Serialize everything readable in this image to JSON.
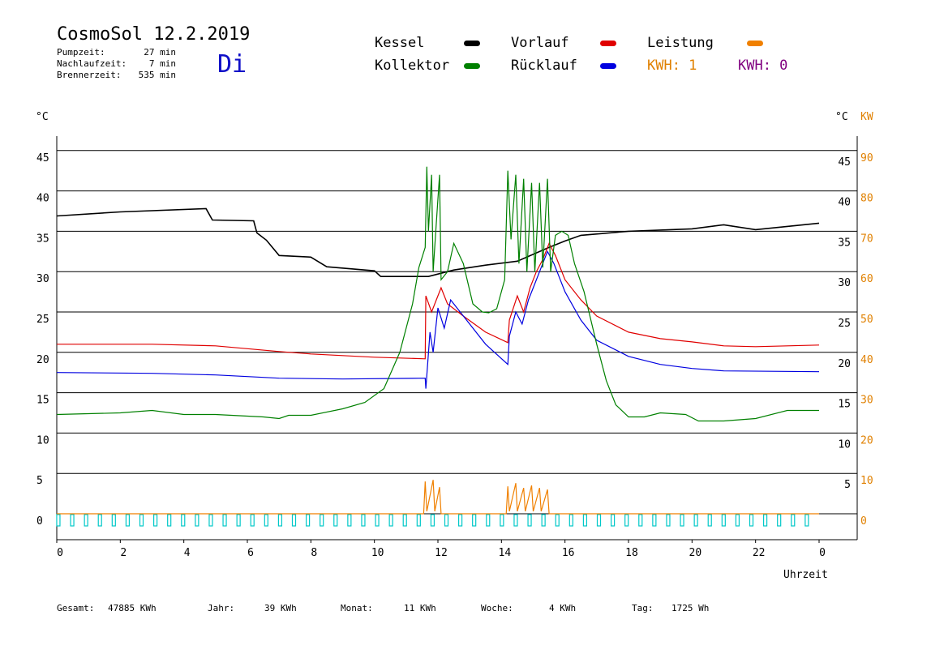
{
  "header": {
    "title": "CosmoSol 12.2.2019",
    "day": "Di",
    "info": [
      {
        "label": "Pumpzeit:",
        "value": "27 min"
      },
      {
        "label": "Nachlaufzeit:",
        "value": "7 min"
      },
      {
        "label": "Brennerzeit:",
        "value": "535 min"
      }
    ]
  },
  "legend": {
    "kessel": {
      "label": "Kessel",
      "color": "#000000"
    },
    "kollektor": {
      "label": "Kollektor",
      "color": "#008000"
    },
    "vorlauf": {
      "label": "Vorlauf",
      "color": "#e00000"
    },
    "ruecklauf": {
      "label": "Rücklauf",
      "color": "#0000e0"
    },
    "leistung": {
      "label": "Leistung",
      "color": "#f08000"
    },
    "kwh1": {
      "label": "KWH: 1",
      "color": "#e08000"
    },
    "kwh2": {
      "label": "KWH: 0",
      "color": "#800080"
    }
  },
  "axes": {
    "left_unit": "°C",
    "right_unit": "°C",
    "right_unit2": "KW",
    "xlabel": "Uhrzeit"
  },
  "footer": [
    {
      "label": "Gesamt:",
      "value": "47885 KWh"
    },
    {
      "label": "Jahr:",
      "value": "39 KWh"
    },
    {
      "label": "Monat:",
      "value": "11 KWh"
    },
    {
      "label": "Woche:",
      "value": "4 KWh"
    },
    {
      "label": "Tag:",
      "value": "1725 Wh"
    }
  ],
  "chart_data": {
    "type": "line",
    "title": "CosmoSol 12.2.2019",
    "xlabel": "Uhrzeit",
    "ylabel": "°C",
    "xlim": [
      0,
      24
    ],
    "ylim": [
      -2,
      48
    ],
    "x_ticks": [
      "0",
      "2",
      "4",
      "6",
      "8",
      "10",
      "12",
      "14",
      "16",
      "18",
      "20",
      "22",
      "0"
    ],
    "y_ticks_left": [
      0,
      5,
      10,
      15,
      20,
      25,
      30,
      35,
      40,
      45
    ],
    "y_ticks_right": [
      5,
      10,
      15,
      20,
      25,
      30,
      35,
      40,
      45
    ],
    "y2_ticks": [
      0,
      10,
      20,
      30,
      40,
      50,
      60,
      70,
      80,
      90
    ],
    "grid": true,
    "series": [
      {
        "name": "Kessel",
        "color": "#000000",
        "points": [
          [
            0,
            36.9
          ],
          [
            2,
            37.4
          ],
          [
            4.7,
            37.8
          ],
          [
            4.9,
            36.4
          ],
          [
            6.2,
            36.3
          ],
          [
            6.3,
            34.8
          ],
          [
            6.6,
            33.9
          ],
          [
            7.0,
            32.0
          ],
          [
            8.0,
            31.8
          ],
          [
            8.5,
            30.6
          ],
          [
            10.0,
            30.1
          ],
          [
            10.2,
            29.4
          ],
          [
            11.7,
            29.4
          ],
          [
            12.5,
            30.2
          ],
          [
            13.5,
            30.8
          ],
          [
            14.5,
            31.3
          ],
          [
            15.5,
            33.0
          ],
          [
            16.0,
            33.8
          ],
          [
            16.5,
            34.5
          ],
          [
            18.0,
            35.0
          ],
          [
            20.0,
            35.3
          ],
          [
            21.0,
            35.8
          ],
          [
            22.0,
            35.2
          ],
          [
            23.0,
            35.6
          ],
          [
            24.0,
            36.0
          ]
        ]
      },
      {
        "name": "Vorlauf",
        "color": "#e00000",
        "points": [
          [
            0,
            21.0
          ],
          [
            3,
            21.0
          ],
          [
            5,
            20.8
          ],
          [
            7,
            20.1
          ],
          [
            8,
            19.8
          ],
          [
            10,
            19.4
          ],
          [
            11.6,
            19.2
          ],
          [
            11.62,
            27.0
          ],
          [
            11.8,
            25.0
          ],
          [
            11.95,
            26.5
          ],
          [
            12.1,
            28.0
          ],
          [
            12.3,
            26.0
          ],
          [
            12.8,
            24.5
          ],
          [
            13.5,
            22.5
          ],
          [
            14.2,
            21.2
          ],
          [
            14.25,
            24.0
          ],
          [
            14.5,
            27.0
          ],
          [
            14.7,
            25.0
          ],
          [
            14.9,
            28.0
          ],
          [
            15.1,
            30.0
          ],
          [
            15.3,
            31.5
          ],
          [
            15.5,
            33.5
          ],
          [
            15.7,
            32.0
          ],
          [
            16.0,
            29.0
          ],
          [
            16.5,
            26.5
          ],
          [
            17.0,
            24.5
          ],
          [
            18.0,
            22.5
          ],
          [
            19.0,
            21.7
          ],
          [
            20.0,
            21.3
          ],
          [
            21.0,
            20.8
          ],
          [
            22.0,
            20.7
          ],
          [
            23.0,
            20.8
          ],
          [
            24.0,
            20.9
          ]
        ]
      },
      {
        "name": "Rücklauf",
        "color": "#0000e0",
        "points": [
          [
            0,
            17.5
          ],
          [
            3,
            17.4
          ],
          [
            5,
            17.2
          ],
          [
            7,
            16.8
          ],
          [
            9,
            16.7
          ],
          [
            11.6,
            16.8
          ],
          [
            11.62,
            15.5
          ],
          [
            11.75,
            22.5
          ],
          [
            11.85,
            20.0
          ],
          [
            12.0,
            25.5
          ],
          [
            12.2,
            23.0
          ],
          [
            12.4,
            26.5
          ],
          [
            12.9,
            24.0
          ],
          [
            13.5,
            21.0
          ],
          [
            14.2,
            18.5
          ],
          [
            14.25,
            22.0
          ],
          [
            14.45,
            25.0
          ],
          [
            14.65,
            23.5
          ],
          [
            14.85,
            26.5
          ],
          [
            15.05,
            28.5
          ],
          [
            15.25,
            30.5
          ],
          [
            15.45,
            32.5
          ],
          [
            15.65,
            31.0
          ],
          [
            16.0,
            27.5
          ],
          [
            16.5,
            24.0
          ],
          [
            17.0,
            21.5
          ],
          [
            18.0,
            19.5
          ],
          [
            19.0,
            18.5
          ],
          [
            20.0,
            18.0
          ],
          [
            21.0,
            17.7
          ],
          [
            24.0,
            17.6
          ]
        ]
      },
      {
        "name": "Kollektor",
        "color": "#008000",
        "points": [
          [
            0,
            12.3
          ],
          [
            2,
            12.5
          ],
          [
            3,
            12.8
          ],
          [
            4,
            12.3
          ],
          [
            5,
            12.3
          ],
          [
            6.5,
            12.0
          ],
          [
            7.0,
            11.8
          ],
          [
            7.3,
            12.2
          ],
          [
            8,
            12.2
          ],
          [
            9,
            13.0
          ],
          [
            9.7,
            13.8
          ],
          [
            10.3,
            15.5
          ],
          [
            10.8,
            20.0
          ],
          [
            11.2,
            26.0
          ],
          [
            11.4,
            30.5
          ],
          [
            11.6,
            33.0
          ],
          [
            11.65,
            43.0
          ],
          [
            11.7,
            35.0
          ],
          [
            11.8,
            42.0
          ],
          [
            11.85,
            30.0
          ],
          [
            11.95,
            36.0
          ],
          [
            12.05,
            42.0
          ],
          [
            12.1,
            29.0
          ],
          [
            12.3,
            30.0
          ],
          [
            12.5,
            33.5
          ],
          [
            12.8,
            31.0
          ],
          [
            13.1,
            26.0
          ],
          [
            13.4,
            25.0
          ],
          [
            13.6,
            24.9
          ],
          [
            13.85,
            25.4
          ],
          [
            14.1,
            29.0
          ],
          [
            14.2,
            42.5
          ],
          [
            14.3,
            34.0
          ],
          [
            14.45,
            42.0
          ],
          [
            14.55,
            31.0
          ],
          [
            14.7,
            41.5
          ],
          [
            14.8,
            30.0
          ],
          [
            14.95,
            41.0
          ],
          [
            15.05,
            30.0
          ],
          [
            15.2,
            41.0
          ],
          [
            15.3,
            30.5
          ],
          [
            15.45,
            41.5
          ],
          [
            15.55,
            30.0
          ],
          [
            15.7,
            34.5
          ],
          [
            15.9,
            35.0
          ],
          [
            16.1,
            34.5
          ],
          [
            16.3,
            31.0
          ],
          [
            16.6,
            27.5
          ],
          [
            17.0,
            21.0
          ],
          [
            17.3,
            16.5
          ],
          [
            17.6,
            13.5
          ],
          [
            18.0,
            12.0
          ],
          [
            18.5,
            12.0
          ],
          [
            19.0,
            12.5
          ],
          [
            19.8,
            12.3
          ],
          [
            20.2,
            11.5
          ],
          [
            21.0,
            11.5
          ],
          [
            22.0,
            11.8
          ],
          [
            23.0,
            12.8
          ],
          [
            24.0,
            12.8
          ]
        ]
      },
      {
        "name": "Leistung",
        "color": "#f08000",
        "points": [
          [
            0,
            0
          ],
          [
            11.55,
            0
          ],
          [
            11.6,
            4.0
          ],
          [
            11.65,
            0.3
          ],
          [
            11.85,
            4.2
          ],
          [
            11.9,
            0.3
          ],
          [
            12.05,
            3.3
          ],
          [
            12.1,
            0
          ],
          [
            14.15,
            0
          ],
          [
            14.2,
            3.4
          ],
          [
            14.25,
            0.3
          ],
          [
            14.45,
            3.8
          ],
          [
            14.5,
            0.3
          ],
          [
            14.7,
            3.2
          ],
          [
            14.75,
            0.3
          ],
          [
            14.95,
            3.5
          ],
          [
            15.0,
            0.3
          ],
          [
            15.2,
            3.2
          ],
          [
            15.25,
            0.3
          ],
          [
            15.45,
            3.0
          ],
          [
            15.5,
            0
          ],
          [
            24,
            0
          ]
        ]
      }
    ]
  }
}
